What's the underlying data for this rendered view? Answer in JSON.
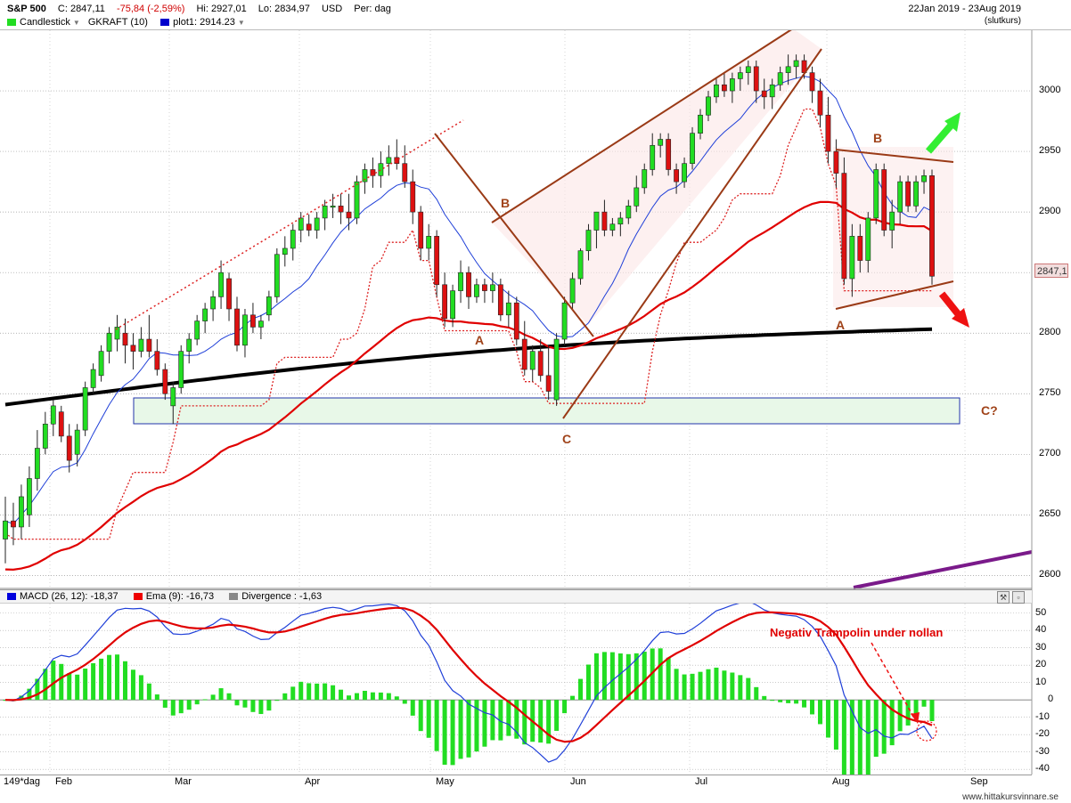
{
  "header": {
    "symbol": "S&P 500",
    "close": "C: 2847,11",
    "change": "-75,84 (-2,59%)",
    "high": "Hi: 2927,01",
    "low": "Lo: 2834,97",
    "currency": "USD",
    "period": "Per: dag",
    "date_range": "22Jan 2019 - 23Aug 2019",
    "close_note": "(slutkurs)",
    "legend": [
      {
        "label": "Candlestick",
        "color": "#22dd22"
      },
      {
        "label": "GKRAFT (10)",
        "color": ""
      },
      {
        "label": "plot1: 2914.23",
        "color": "#0000cc"
      }
    ]
  },
  "macd_header": {
    "items": [
      {
        "label": "MACD (26, 12): -18,37",
        "color": "#0000dd"
      },
      {
        "label": "Ema (9): -16,73",
        "color": "#ee0000"
      },
      {
        "label": "Divergence : -1,63",
        "color": "#888888"
      }
    ]
  },
  "footer": {
    "interval": "149*dag",
    "months": [
      "Feb",
      "Mar",
      "Apr",
      "May",
      "Jun",
      "Jul",
      "Aug",
      "Sep"
    ],
    "credit": "www.hittakursvinnare.se"
  },
  "annotations": {
    "A1": "A",
    "B1": "B",
    "C1": "C",
    "A2": "A",
    "B2": "B",
    "C2": "C?",
    "trampolin": "Negativ Trampolin under nollan"
  },
  "last_price_label": "2847,1",
  "price_axis_ticks": [
    "3000",
    "2950",
    "2900",
    "2850",
    "2800",
    "2750",
    "2700",
    "2650",
    "2600"
  ],
  "macd_axis_ticks": [
    "50",
    "40",
    "30",
    "20",
    "10",
    "0",
    "-10",
    "-20",
    "-30",
    "-40"
  ],
  "colors": {
    "bull": "#22dd22",
    "bear": "#dd1111",
    "ma_long": "#000000",
    "ma_mid": "#e00000",
    "ma_short": "#1f3fd8",
    "trend": "#9a3a16",
    "purple": "#7a1a8a",
    "arrow_up": "#33ee33",
    "arrow_down": "#ee1111"
  },
  "chart_data": [
    {
      "type": "candlestick",
      "title": "S&P 500",
      "x_range": [
        "2019-01-22",
        "2019-08-23"
      ],
      "ylim": [
        2590,
        3040
      ],
      "grid": true,
      "candles_ohlc": [
        [
          2630,
          2665,
          2610,
          2645
        ],
        [
          2645,
          2660,
          2625,
          2640
        ],
        [
          2640,
          2675,
          2630,
          2665
        ],
        [
          2650,
          2690,
          2640,
          2680
        ],
        [
          2680,
          2720,
          2670,
          2705
        ],
        [
          2705,
          2735,
          2700,
          2725
        ],
        [
          2725,
          2745,
          2715,
          2740
        ],
        [
          2735,
          2740,
          2710,
          2715
        ],
        [
          2715,
          2725,
          2685,
          2695
        ],
        [
          2700,
          2725,
          2690,
          2720
        ],
        [
          2720,
          2760,
          2715,
          2755
        ],
        [
          2755,
          2775,
          2750,
          2770
        ],
        [
          2765,
          2790,
          2760,
          2785
        ],
        [
          2785,
          2805,
          2775,
          2800
        ],
        [
          2795,
          2815,
          2785,
          2805
        ],
        [
          2800,
          2812,
          2775,
          2790
        ],
        [
          2790,
          2800,
          2770,
          2785
        ],
        [
          2785,
          2805,
          2780,
          2795
        ],
        [
          2795,
          2815,
          2780,
          2785
        ],
        [
          2785,
          2795,
          2765,
          2770
        ],
        [
          2770,
          2775,
          2745,
          2750
        ],
        [
          2740,
          2760,
          2725,
          2755
        ],
        [
          2755,
          2790,
          2750,
          2785
        ],
        [
          2785,
          2800,
          2775,
          2795
        ],
        [
          2795,
          2815,
          2790,
          2810
        ],
        [
          2810,
          2825,
          2800,
          2820
        ],
        [
          2820,
          2835,
          2810,
          2830
        ],
        [
          2830,
          2860,
          2820,
          2850
        ],
        [
          2845,
          2850,
          2810,
          2820
        ],
        [
          2820,
          2830,
          2785,
          2790
        ],
        [
          2790,
          2820,
          2780,
          2815
        ],
        [
          2815,
          2825,
          2800,
          2805
        ],
        [
          2805,
          2815,
          2795,
          2810
        ],
        [
          2815,
          2835,
          2810,
          2830
        ],
        [
          2830,
          2870,
          2825,
          2865
        ],
        [
          2865,
          2880,
          2855,
          2870
        ],
        [
          2870,
          2890,
          2860,
          2885
        ],
        [
          2885,
          2900,
          2875,
          2895
        ],
        [
          2890,
          2898,
          2880,
          2885
        ],
        [
          2885,
          2900,
          2878,
          2895
        ],
        [
          2895,
          2910,
          2885,
          2905
        ],
        [
          2905,
          2915,
          2895,
          2905
        ],
        [
          2905,
          2915,
          2890,
          2900
        ],
        [
          2900,
          2915,
          2885,
          2895
        ],
        [
          2895,
          2930,
          2890,
          2925
        ],
        [
          2925,
          2940,
          2915,
          2935
        ],
        [
          2935,
          2945,
          2920,
          2930
        ],
        [
          2930,
          2950,
          2920,
          2940
        ],
        [
          2940,
          2955,
          2930,
          2945
        ],
        [
          2945,
          2960,
          2935,
          2940
        ],
        [
          2940,
          2955,
          2920,
          2925
        ],
        [
          2925,
          2935,
          2890,
          2900
        ],
        [
          2900,
          2905,
          2860,
          2870
        ],
        [
          2870,
          2890,
          2860,
          2880
        ],
        [
          2880,
          2885,
          2830,
          2840
        ],
        [
          2840,
          2850,
          2805,
          2812
        ],
        [
          2812,
          2840,
          2805,
          2835
        ],
        [
          2835,
          2860,
          2825,
          2850
        ],
        [
          2850,
          2855,
          2820,
          2830
        ],
        [
          2830,
          2845,
          2825,
          2840
        ],
        [
          2840,
          2845,
          2825,
          2835
        ],
        [
          2835,
          2850,
          2825,
          2840
        ],
        [
          2840,
          2845,
          2810,
          2815
        ],
        [
          2815,
          2835,
          2805,
          2825
        ],
        [
          2825,
          2830,
          2790,
          2795
        ],
        [
          2795,
          2810,
          2765,
          2770
        ],
        [
          2770,
          2790,
          2760,
          2785
        ],
        [
          2785,
          2795,
          2760,
          2765
        ],
        [
          2765,
          2790,
          2745,
          2752
        ],
        [
          2745,
          2800,
          2740,
          2795
        ],
        [
          2795,
          2830,
          2790,
          2825
        ],
        [
          2825,
          2850,
          2820,
          2845
        ],
        [
          2845,
          2870,
          2840,
          2868
        ],
        [
          2868,
          2890,
          2860,
          2885
        ],
        [
          2885,
          2900,
          2870,
          2900
        ],
        [
          2900,
          2910,
          2880,
          2885
        ],
        [
          2885,
          2895,
          2880,
          2890
        ],
        [
          2890,
          2900,
          2880,
          2895
        ],
        [
          2895,
          2910,
          2890,
          2905
        ],
        [
          2905,
          2930,
          2900,
          2920
        ],
        [
          2920,
          2940,
          2915,
          2935
        ],
        [
          2935,
          2965,
          2930,
          2955
        ],
        [
          2955,
          2965,
          2945,
          2960
        ],
        [
          2960,
          2965,
          2930,
          2935
        ],
        [
          2935,
          2940,
          2915,
          2925
        ],
        [
          2925,
          2945,
          2920,
          2940
        ],
        [
          2940,
          2970,
          2935,
          2965
        ],
        [
          2965,
          2985,
          2960,
          2980
        ],
        [
          2980,
          3000,
          2975,
          2995
        ],
        [
          2995,
          3010,
          2990,
          3005
        ],
        [
          3005,
          3015,
          2995,
          3000
        ],
        [
          3000,
          3015,
          2990,
          3010
        ],
        [
          3010,
          3020,
          3000,
          3015
        ],
        [
          3015,
          3025,
          3005,
          3020
        ],
        [
          3020,
          3025,
          2990,
          3000
        ],
        [
          3000,
          3010,
          2985,
          2995
        ],
        [
          2995,
          3010,
          2985,
          3005
        ],
        [
          3005,
          3020,
          3000,
          3015
        ],
        [
          3015,
          3030,
          3005,
          3020
        ],
        [
          3020,
          3030,
          3010,
          3025
        ],
        [
          3025,
          3030,
          3010,
          3015
        ],
        [
          3015,
          3020,
          2990,
          3000
        ],
        [
          3000,
          3010,
          2970,
          2980
        ],
        [
          2980,
          2995,
          2940,
          2950
        ],
        [
          2950,
          2960,
          2920,
          2932
        ],
        [
          2932,
          2945,
          2840,
          2845
        ],
        [
          2845,
          2890,
          2830,
          2880
        ],
        [
          2880,
          2890,
          2850,
          2860
        ],
        [
          2860,
          2900,
          2850,
          2895
        ],
        [
          2895,
          2940,
          2890,
          2935
        ],
        [
          2935,
          2940,
          2880,
          2885
        ],
        [
          2885,
          2910,
          2870,
          2900
        ],
        [
          2900,
          2930,
          2890,
          2925
        ],
        [
          2925,
          2930,
          2900,
          2905
        ],
        [
          2905,
          2930,
          2900,
          2925
        ],
        [
          2925,
          2935,
          2915,
          2930
        ],
        [
          2930,
          2935,
          2840,
          2847
        ]
      ]
    },
    {
      "type": "line",
      "title": "MACD",
      "series": [
        {
          "name": "MACD (26, 12)",
          "last": -18.37
        },
        {
          "name": "Ema (9)",
          "last": -16.73
        },
        {
          "name": "Divergence",
          "last": -1.63
        }
      ],
      "ylim": [
        -40,
        50
      ]
    }
  ]
}
